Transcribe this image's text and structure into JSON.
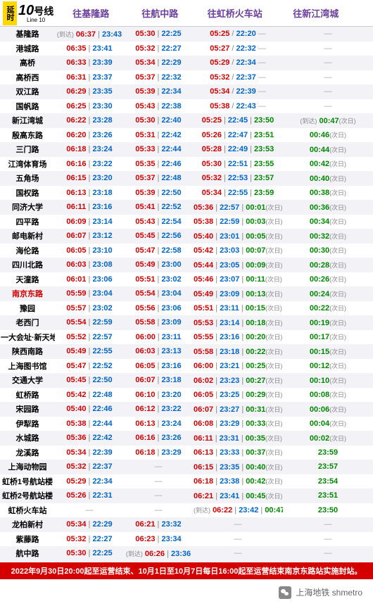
{
  "line": {
    "yanshi": "延时",
    "number": "10",
    "hao": "号线",
    "sub": "Line 10"
  },
  "destinations": [
    "往基隆路",
    "往航中路",
    "往虹桥火车站",
    "往新江湾城"
  ],
  "notice": "2022年9月30日20:00起至运营结束、10月1日至10月7日每日16:00起至运营结束南京东路站实施封站。",
  "footer": "上海地铁 shmetro",
  "stations": [
    {
      "name": "基隆路",
      "hi": false,
      "c1": {
        "arr": true,
        "f": "06:37",
        "l": "23:43"
      },
      "c2": {
        "f": "05:30",
        "l": "22:25"
      },
      "c3": {
        "f": "05:25",
        "l": "22:20",
        "sep": "/"
      },
      "c4": {
        "dash": true
      }
    },
    {
      "name": "港城路",
      "hi": false,
      "c1": {
        "f": "06:35",
        "l": "23:41"
      },
      "c2": {
        "f": "05:32",
        "l": "22:27"
      },
      "c3": {
        "f": "05:27",
        "l": "22:32",
        "sep": "/"
      },
      "c4": {
        "dash": true
      }
    },
    {
      "name": "高桥",
      "hi": false,
      "c1": {
        "f": "06:33",
        "l": "23:39"
      },
      "c2": {
        "f": "05:34",
        "l": "22:29"
      },
      "c3": {
        "f": "05:29",
        "l": "22:34",
        "sep": "/"
      },
      "c4": {
        "dash": true
      }
    },
    {
      "name": "高桥西",
      "hi": false,
      "c1": {
        "f": "06:31",
        "l": "23:37"
      },
      "c2": {
        "f": "05:37",
        "l": "22:32"
      },
      "c3": {
        "f": "05:32",
        "l": "22:37",
        "sep": "/"
      },
      "c4": {
        "dash": true
      }
    },
    {
      "name": "双江路",
      "hi": false,
      "c1": {
        "f": "06:29",
        "l": "23:35"
      },
      "c2": {
        "f": "05:39",
        "l": "22:34"
      },
      "c3": {
        "f": "05:34",
        "l": "22:39",
        "sep": "/"
      },
      "c4": {
        "dash": true
      }
    },
    {
      "name": "国帆路",
      "hi": false,
      "c1": {
        "f": "06:25",
        "l": "23:30"
      },
      "c2": {
        "f": "05:43",
        "l": "22:38"
      },
      "c3": {
        "f": "05:38",
        "l": "22:43",
        "sep": "/"
      },
      "c4": {
        "dash": true
      }
    },
    {
      "name": "新江湾城",
      "hi": false,
      "c1": {
        "f": "06:22",
        "l": "23:28"
      },
      "c2": {
        "f": "05:30",
        "l": "22:40"
      },
      "c3": {
        "f": "05:25",
        "l": "22:45",
        "e": "23:50"
      },
      "c4": {
        "arr": true,
        "e": "00:47",
        "nd": true
      }
    },
    {
      "name": "殷高东路",
      "hi": false,
      "c1": {
        "f": "06:20",
        "l": "23:26"
      },
      "c2": {
        "f": "05:31",
        "l": "22:42"
      },
      "c3": {
        "f": "05:26",
        "l": "22:47",
        "e": "23:51"
      },
      "c4": {
        "e": "00:46",
        "nd": true
      }
    },
    {
      "name": "三门路",
      "hi": false,
      "c1": {
        "f": "06:18",
        "l": "23:24"
      },
      "c2": {
        "f": "05:33",
        "l": "22:44"
      },
      "c3": {
        "f": "05:28",
        "l": "22:49",
        "e": "23:53"
      },
      "c4": {
        "e": "00:44",
        "nd": true
      }
    },
    {
      "name": "江湾体育场",
      "hi": false,
      "c1": {
        "f": "06:16",
        "l": "23:22"
      },
      "c2": {
        "f": "05:35",
        "l": "22:46"
      },
      "c3": {
        "f": "05:30",
        "l": "22:51",
        "e": "23:55"
      },
      "c4": {
        "e": "00:42",
        "nd": true
      }
    },
    {
      "name": "五角场",
      "hi": false,
      "c1": {
        "f": "06:15",
        "l": "23:20"
      },
      "c2": {
        "f": "05:37",
        "l": "22:48"
      },
      "c3": {
        "f": "05:32",
        "l": "22:53",
        "e": "23:57"
      },
      "c4": {
        "e": "00:40",
        "nd": true
      }
    },
    {
      "name": "国权路",
      "hi": false,
      "c1": {
        "f": "06:13",
        "l": "23:18"
      },
      "c2": {
        "f": "05:39",
        "l": "22:50"
      },
      "c3": {
        "f": "05:34",
        "l": "22:55",
        "e": "23:59"
      },
      "c4": {
        "e": "00:38",
        "nd": true
      }
    },
    {
      "name": "同济大学",
      "hi": false,
      "c1": {
        "f": "06:11",
        "l": "23:16"
      },
      "c2": {
        "f": "05:41",
        "l": "22:52"
      },
      "c3": {
        "f": "05:36",
        "l": "22:57",
        "e": "00:01",
        "nd3": true
      },
      "c4": {
        "e": "00:36",
        "nd": true
      }
    },
    {
      "name": "四平路",
      "hi": false,
      "c1": {
        "f": "06:09",
        "l": "23:14"
      },
      "c2": {
        "f": "05:43",
        "l": "22:54"
      },
      "c3": {
        "f": "05:38",
        "l": "22:59",
        "e": "00:03",
        "nd3": true
      },
      "c4": {
        "e": "00:34",
        "nd": true
      }
    },
    {
      "name": "邮电新村",
      "hi": false,
      "c1": {
        "f": "06:07",
        "l": "23:12"
      },
      "c2": {
        "f": "05:45",
        "l": "22:56"
      },
      "c3": {
        "f": "05:40",
        "l": "23:01",
        "e": "00:05",
        "nd3": true
      },
      "c4": {
        "e": "00:32",
        "nd": true
      }
    },
    {
      "name": "海伦路",
      "hi": false,
      "c1": {
        "f": "06:05",
        "l": "23:10"
      },
      "c2": {
        "f": "05:47",
        "l": "22:58"
      },
      "c3": {
        "f": "05:42",
        "l": "23:03",
        "e": "00:07",
        "nd3": true
      },
      "c4": {
        "e": "00:30",
        "nd": true
      }
    },
    {
      "name": "四川北路",
      "hi": false,
      "c1": {
        "f": "06:03",
        "l": "23:08"
      },
      "c2": {
        "f": "05:49",
        "l": "23:00"
      },
      "c3": {
        "f": "05:44",
        "l": "23:05",
        "e": "00:09",
        "nd3": true
      },
      "c4": {
        "e": "00:28",
        "nd": true
      }
    },
    {
      "name": "天潼路",
      "hi": false,
      "c1": {
        "f": "06:01",
        "l": "23:06"
      },
      "c2": {
        "f": "05:51",
        "l": "23:02"
      },
      "c3": {
        "f": "05:46",
        "l": "23:07",
        "e": "00:11",
        "nd3": true
      },
      "c4": {
        "e": "00:26",
        "nd": true
      }
    },
    {
      "name": "南京东路",
      "hi": true,
      "c1": {
        "f": "05:59",
        "l": "23:04"
      },
      "c2": {
        "f": "05:54",
        "l": "23:04"
      },
      "c3": {
        "f": "05:49",
        "l": "23:09",
        "e": "00:13",
        "nd3": true
      },
      "c4": {
        "e": "00:24",
        "nd": true
      }
    },
    {
      "name": "豫园",
      "hi": false,
      "c1": {
        "f": "05:57",
        "l": "23:02"
      },
      "c2": {
        "f": "05:56",
        "l": "23:06"
      },
      "c3": {
        "f": "05:51",
        "l": "23:11",
        "e": "00:15",
        "nd3": true
      },
      "c4": {
        "e": "00:22",
        "nd": true
      }
    },
    {
      "name": "老西门",
      "hi": false,
      "c1": {
        "f": "05:54",
        "l": "22:59"
      },
      "c2": {
        "f": "05:58",
        "l": "23:09"
      },
      "c3": {
        "f": "05:53",
        "l": "23:14",
        "e": "00:18",
        "nd3": true
      },
      "c4": {
        "e": "00:19",
        "nd": true
      }
    },
    {
      "name": "一大会址·新天地",
      "hi": false,
      "c1": {
        "f": "05:52",
        "l": "22:57"
      },
      "c2": {
        "f": "06:00",
        "l": "23:11"
      },
      "c3": {
        "f": "05:55",
        "l": "23:16",
        "e": "00:20",
        "nd3": true
      },
      "c4": {
        "e": "00:17",
        "nd": true
      }
    },
    {
      "name": "陕西南路",
      "hi": false,
      "c1": {
        "f": "05:49",
        "l": "22:55"
      },
      "c2": {
        "f": "06:03",
        "l": "23:13"
      },
      "c3": {
        "f": "05:58",
        "l": "23:18",
        "e": "00:22",
        "nd3": true
      },
      "c4": {
        "e": "00:15",
        "nd": true
      }
    },
    {
      "name": "上海图书馆",
      "hi": false,
      "c1": {
        "f": "05:47",
        "l": "22:52"
      },
      "c2": {
        "f": "06:05",
        "l": "23:16"
      },
      "c3": {
        "f": "06:00",
        "l": "23:21",
        "e": "00:25",
        "nd3": true
      },
      "c4": {
        "e": "00:12",
        "nd": true
      }
    },
    {
      "name": "交通大学",
      "hi": false,
      "c1": {
        "f": "05:45",
        "l": "22:50"
      },
      "c2": {
        "f": "06:07",
        "l": "23:18"
      },
      "c3": {
        "f": "06:02",
        "l": "23:23",
        "e": "00:27",
        "nd3": true
      },
      "c4": {
        "e": "00:10",
        "nd": true
      }
    },
    {
      "name": "虹桥路",
      "hi": false,
      "c1": {
        "f": "05:42",
        "l": "22:48"
      },
      "c2": {
        "f": "06:10",
        "l": "23:20"
      },
      "c3": {
        "f": "06:05",
        "l": "23:25",
        "e": "00:29",
        "nd3": true
      },
      "c4": {
        "e": "00:08",
        "nd": true
      }
    },
    {
      "name": "宋园路",
      "hi": false,
      "c1": {
        "f": "05:40",
        "l": "22:46"
      },
      "c2": {
        "f": "06:12",
        "l": "23:22"
      },
      "c3": {
        "f": "06:07",
        "l": "23:27",
        "e": "00:31",
        "nd3": true
      },
      "c4": {
        "e": "00:06",
        "nd": true
      }
    },
    {
      "name": "伊犁路",
      "hi": false,
      "c1": {
        "f": "05:38",
        "l": "22:44"
      },
      "c2": {
        "f": "06:13",
        "l": "23:24"
      },
      "c3": {
        "f": "06:08",
        "l": "23:29",
        "e": "00:33",
        "nd3": true
      },
      "c4": {
        "e": "00:04",
        "nd": true
      }
    },
    {
      "name": "水城路",
      "hi": false,
      "c1": {
        "f": "05:36",
        "l": "22:42"
      },
      "c2": {
        "f": "06:16",
        "l": "23:26"
      },
      "c3": {
        "f": "06:11",
        "l": "23:31",
        "e": "00:35",
        "nd3": true
      },
      "c4": {
        "e": "00:02",
        "nd": true
      }
    },
    {
      "name": "龙溪路",
      "hi": false,
      "c1": {
        "f": "05:34",
        "l": "22:39"
      },
      "c2": {
        "f": "06:18",
        "l": "23:29"
      },
      "c3": {
        "f": "06:13",
        "l": "23:33",
        "e": "00:37",
        "nd3": true
      },
      "c4": {
        "e": "23:59"
      }
    },
    {
      "name": "上海动物园",
      "hi": false,
      "c1": {
        "f": "05:32",
        "l": "22:37"
      },
      "c2": {
        "dash": true
      },
      "c3": {
        "f": "06:15",
        "l": "23:35",
        "e": "00:40",
        "nd3": true
      },
      "c4": {
        "e": "23:57"
      }
    },
    {
      "name": "虹桥1号航站楼",
      "hi": false,
      "c1": {
        "f": "05:29",
        "l": "22:34"
      },
      "c2": {
        "dash": true
      },
      "c3": {
        "f": "06:18",
        "l": "23:38",
        "e": "00:42",
        "nd3": true
      },
      "c4": {
        "e": "23:54"
      }
    },
    {
      "name": "虹桥2号航站楼",
      "hi": false,
      "c1": {
        "f": "05:26",
        "l": "22:31"
      },
      "c2": {
        "dash": true
      },
      "c3": {
        "f": "06:21",
        "l": "23:41",
        "e": "00:45",
        "nd3": true
      },
      "c4": {
        "e": "23:51"
      }
    },
    {
      "name": "虹桥火车站",
      "hi": false,
      "c1": {
        "dash": true
      },
      "c2": {
        "dash": true
      },
      "c3": {
        "arr": true,
        "f": "06:22",
        "l": "23:42",
        "e": "00:47",
        "nd3": true
      },
      "c4": {
        "e": "23:50"
      }
    },
    {
      "name": "龙柏新村",
      "hi": false,
      "c1": {
        "f": "05:34",
        "l": "22:29"
      },
      "c2": {
        "f": "06:21",
        "l": "23:32"
      },
      "c3": {
        "dash": true
      },
      "c4": {
        "dash": true
      }
    },
    {
      "name": "紫藤路",
      "hi": false,
      "c1": {
        "f": "05:32",
        "l": "22:27"
      },
      "c2": {
        "f": "06:23",
        "l": "23:34"
      },
      "c3": {
        "dash": true
      },
      "c4": {
        "dash": true
      }
    },
    {
      "name": "航中路",
      "hi": false,
      "c1": {
        "f": "05:30",
        "l": "22:25"
      },
      "c2": {
        "arr": true,
        "f": "06:26",
        "l": "23:36"
      },
      "c3": {
        "dash": true
      },
      "c4": {
        "dash": true
      }
    }
  ]
}
